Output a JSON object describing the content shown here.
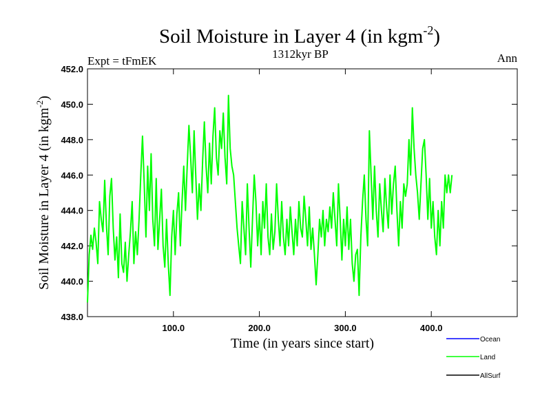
{
  "header": {
    "title_main": "Soil Moisture in Layer 4 (in kgm",
    "title_sup": "-2",
    "title_close": ")",
    "subtitle": "1312kyr BP",
    "left_label": "Expt = tFmEK",
    "right_label": "Ann"
  },
  "chart_data": {
    "type": "line",
    "title": "Soil Moisture in Layer 4 (in kgm-2)",
    "subtitle": "1312kyr BP",
    "xlabel": "Time (in years since start)",
    "ylabel_main": "Soil Moisture in Layer 4 (in kgm",
    "ylabel_sup": "-2",
    "ylabel_close": ")",
    "xlim": [
      0,
      500
    ],
    "ylim": [
      438,
      452
    ],
    "x_ticks": [
      100,
      200,
      300,
      400
    ],
    "x_tick_labels": [
      "100.0",
      "200.0",
      "300.0",
      "400.0"
    ],
    "y_ticks": [
      438,
      440,
      442,
      444,
      446,
      448,
      450,
      452
    ],
    "y_tick_labels": [
      "438.0",
      "440.0",
      "442.0",
      "444.0",
      "446.0",
      "448.0",
      "450.0",
      "452.0"
    ],
    "legend": [
      {
        "name": "Ocean",
        "color": "#0000ff"
      },
      {
        "name": "Land",
        "color": "#00ff00"
      },
      {
        "name": "AllSurf",
        "color": "#000000"
      }
    ],
    "series": [
      {
        "name": "Land",
        "color": "#00ff00",
        "x_start": 0,
        "x_step": 2,
        "values": [
          438.8,
          441.5,
          442.6,
          441.8,
          443.0,
          442.2,
          441.0,
          444.5,
          443.5,
          442.8,
          445.7,
          443.2,
          441.5,
          444.8,
          445.8,
          443.0,
          441.2,
          442.5,
          440.2,
          443.8,
          441.0,
          440.5,
          442.2,
          440.0,
          441.5,
          442.8,
          444.5,
          441.0,
          442.8,
          441.5,
          443.5,
          446.0,
          448.2,
          445.5,
          442.5,
          446.5,
          444.0,
          447.2,
          443.5,
          442.0,
          445.8,
          441.8,
          443.5,
          445.2,
          442.0,
          440.8,
          443.5,
          441.0,
          439.2,
          442.5,
          444.0,
          441.5,
          443.8,
          445.0,
          442.0,
          444.5,
          446.5,
          444.0,
          446.5,
          448.8,
          447.0,
          445.0,
          448.5,
          446.0,
          443.5,
          445.5,
          444.0,
          446.8,
          449.0,
          446.5,
          445.0,
          447.8,
          445.5,
          448.2,
          449.8,
          447.0,
          446.0,
          448.5,
          447.5,
          449.5,
          447.0,
          445.5,
          450.5,
          447.5,
          446.5,
          446.0,
          444.5,
          443.0,
          442.0,
          441.0,
          444.5,
          443.0,
          441.5,
          445.5,
          443.0,
          440.8,
          443.5,
          446.0,
          444.5,
          442.0,
          443.8,
          441.5,
          444.5,
          443.0,
          445.5,
          442.5,
          441.5,
          443.8,
          441.8,
          442.8,
          445.5,
          443.5,
          442.0,
          444.5,
          442.5,
          441.5,
          443.5,
          442.0,
          444.2,
          442.8,
          441.5,
          443.5,
          442.0,
          444.5,
          443.0,
          442.5,
          444.8,
          443.5,
          442.0,
          444.2,
          441.8,
          443.0,
          441.5,
          439.8,
          441.5,
          443.5,
          442.5,
          444.0,
          442.0,
          443.5,
          442.8,
          444.2,
          443.0,
          445.0,
          443.5,
          442.0,
          445.5,
          443.5,
          441.2,
          443.5,
          442.0,
          444.2,
          441.8,
          443.5,
          441.0,
          440.0,
          441.5,
          441.8,
          439.2,
          442.5,
          444.5,
          446.0,
          443.5,
          442.0,
          448.5,
          446.0,
          443.5,
          446.5,
          444.0,
          442.5,
          445.5,
          444.0,
          442.8,
          445.8,
          444.2,
          443.0,
          446.0,
          443.8,
          445.5,
          446.5,
          444.0,
          442.0,
          444.5,
          443.0,
          445.5,
          444.8,
          445.5,
          448.0,
          446.0,
          449.8,
          447.5,
          446.0,
          445.0,
          443.5,
          445.5,
          447.5,
          448.0,
          446.0,
          443.5,
          445.8,
          443.0,
          444.5,
          442.5,
          441.5,
          444.0,
          442.0,
          444.5,
          443.0,
          446.0,
          445.0,
          446.0,
          445.0,
          446.0
        ]
      }
    ]
  }
}
